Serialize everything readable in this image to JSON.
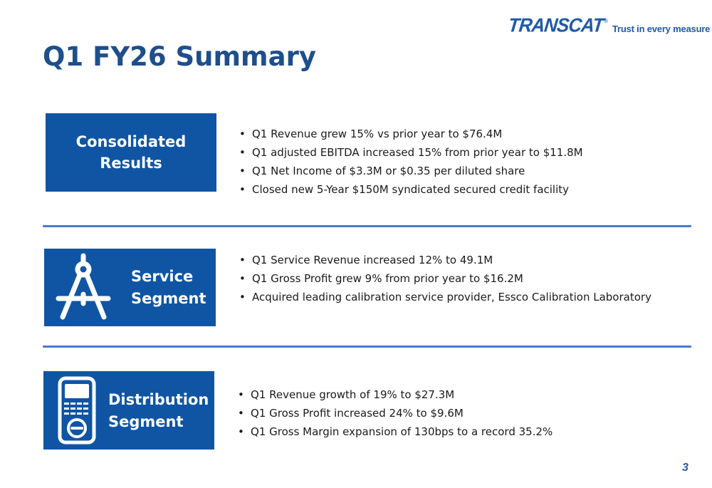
{
  "logo": {
    "word": "TRANSCAT",
    "registered": "®",
    "tagline": "Trust in every measure"
  },
  "title": "Q1 FY26 Summary",
  "sections": [
    {
      "label_lines": [
        "Consolidated",
        "Results"
      ],
      "bullets": [
        "Q1 Revenue grew 15% vs prior year to $76.4M",
        "Q1 adjusted EBITDA increased 15% from prior year to $11.8M",
        "Q1 Net Income of $3.3M or $0.35 per diluted share",
        "Closed new 5-Year $150M syndicated secured credit facility"
      ]
    },
    {
      "label_lines": [
        "Service",
        "Segment"
      ],
      "icon": "drafting-compass-icon",
      "bullets": [
        "Q1 Service Revenue increased 12% to 49.1M",
        "Q1 Gross Profit grew 9% from prior year to $16.2M",
        "Acquired leading calibration service provider, Essco Calibration Laboratory"
      ]
    },
    {
      "label_lines": [
        "Distribution",
        "Segment"
      ],
      "icon": "handheld-meter-icon",
      "bullets": [
        "Q1 Revenue growth of 19% to $27.3M",
        "Q1 Gross Profit increased 24% to $9.6M",
        "Q1 Gross Margin expansion of 130bps to a record 35.2%"
      ]
    }
  ],
  "page_number": "3",
  "colors": {
    "brand_blue": "#0f55a4",
    "title_blue": "#1e4e8c",
    "divider": "#4a7ad0"
  }
}
